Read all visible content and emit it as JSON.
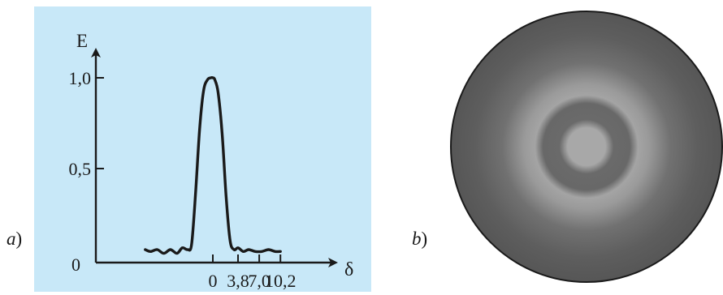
{
  "colors": {
    "panel_a_background": "#c8e8f8",
    "axis": "#1a1a1a",
    "curve": "#1a1a1a",
    "disk_outer": "#555555",
    "disk_bright_ring": "#b0b0b0",
    "disk_dark_ring": "#6a6a6a",
    "disk_center": "#a8a8a8"
  },
  "panel_a": {
    "label_letter": "a",
    "label_paren": ")",
    "y_axis_label": "E",
    "x_axis_label": "δ",
    "origin_label": "0",
    "y_ticks": [
      "1,0",
      "0,5"
    ],
    "x_ticks": [
      "0",
      "3,8",
      "7,0",
      "10,2"
    ]
  },
  "panel_b": {
    "label_letter": "b",
    "label_paren": ")"
  },
  "chart_data": {
    "type": "line",
    "title": "",
    "xlabel": "δ",
    "ylabel": "E",
    "y_tick_values": [
      1.0,
      0.5
    ],
    "x_tick_values": [
      0,
      3.8,
      7.0,
      10.2
    ],
    "ylim": [
      0,
      1.0
    ],
    "xlim": [
      -10.2,
      10.2
    ],
    "grid": false,
    "series": [
      {
        "x": [
          -10.2,
          -9.4,
          -8.4,
          -7.4,
          -6.4,
          -5.4,
          -4.6,
          -3.8,
          -3.2,
          -2.6,
          -2.0,
          -1.4,
          -0.8,
          -0.3,
          0,
          0.3,
          0.8,
          1.4,
          2.0,
          2.6,
          3.2,
          3.8,
          4.6,
          5.4,
          6.4,
          7.4,
          8.4,
          9.4,
          10.2
        ],
        "y": [
          0.07,
          0.06,
          0.07,
          0.05,
          0.07,
          0.05,
          0.08,
          0.07,
          0.1,
          0.38,
          0.72,
          0.93,
          0.99,
          1.0,
          1.0,
          0.99,
          0.92,
          0.7,
          0.36,
          0.12,
          0.07,
          0.08,
          0.06,
          0.07,
          0.06,
          0.06,
          0.07,
          0.06,
          0.06
        ]
      }
    ]
  }
}
